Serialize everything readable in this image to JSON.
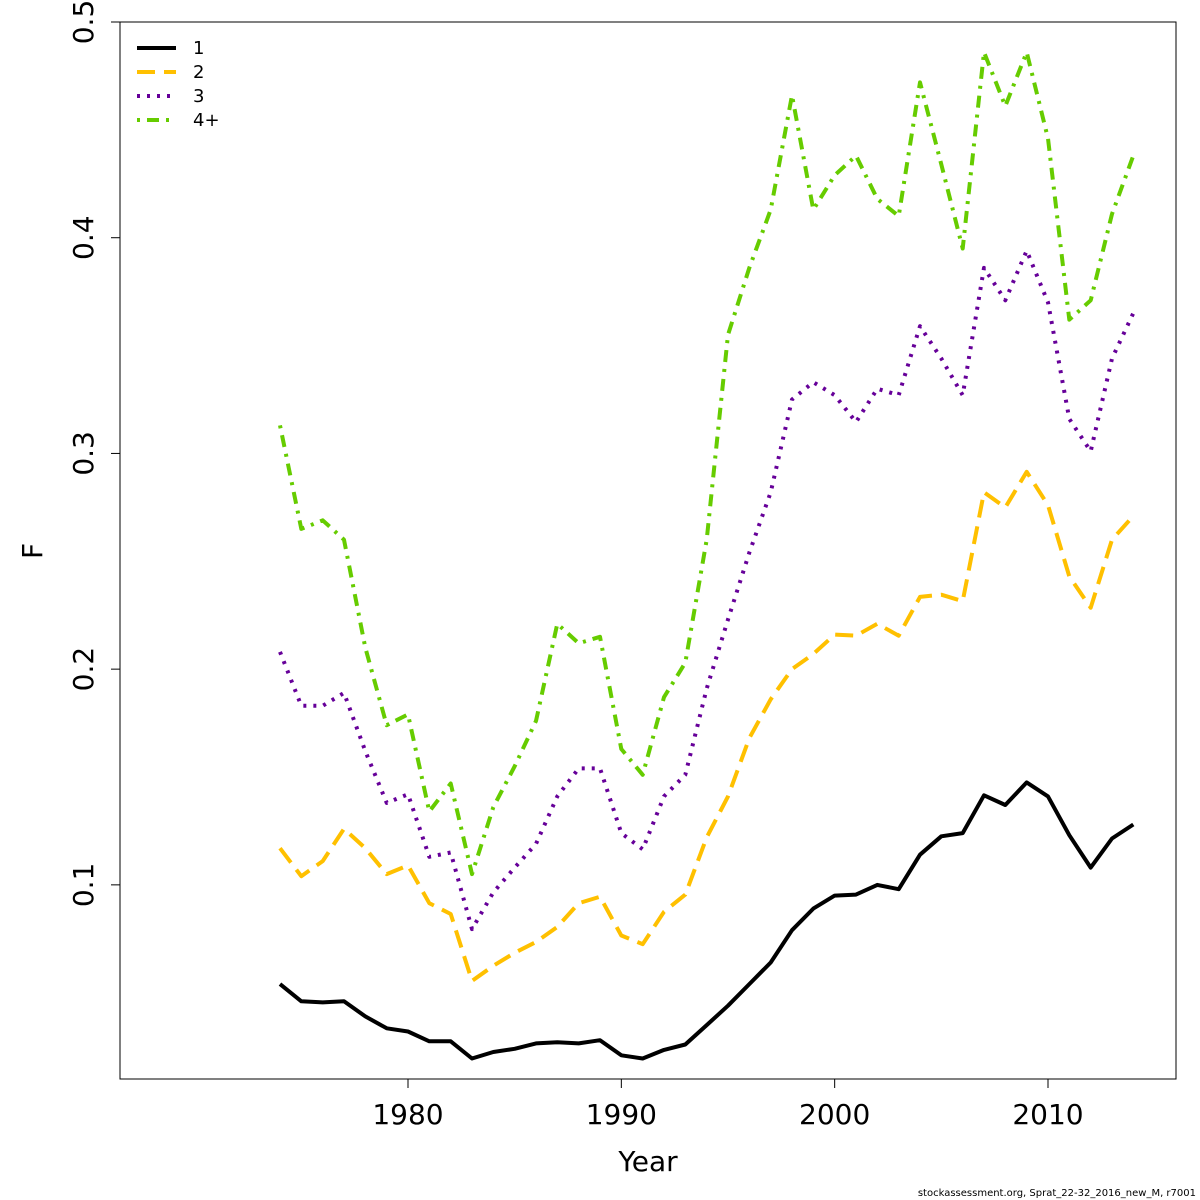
{
  "chart_data": {
    "type": "line",
    "title": "",
    "xlabel": "Year",
    "ylabel": "F",
    "xlim": [
      1966.5,
      2016.0
    ],
    "ylim": [
      0.01,
      0.5
    ],
    "xticks": [
      1980,
      1990,
      2000,
      2010
    ],
    "xtick_labels": [
      "1980",
      "1990",
      "2000",
      "2010"
    ],
    "yticks": [
      0.1,
      0.2,
      0.3,
      0.4,
      0.5
    ],
    "ytick_labels": [
      "0.1",
      "0.2",
      "0.3",
      "0.4",
      "0.5"
    ],
    "grid": false,
    "legend_position": "top-left",
    "x": [
      1974,
      1975,
      1976,
      1977,
      1978,
      1979,
      1980,
      1981,
      1982,
      1983,
      1984,
      1985,
      1986,
      1987,
      1988,
      1989,
      1990,
      1991,
      1992,
      1993,
      1994,
      1995,
      1996,
      1997,
      1998,
      1999,
      2000,
      2001,
      2002,
      2003,
      2004,
      2005,
      2006,
      2007,
      2008,
      2009,
      2010,
      2011,
      2012,
      2013,
      2014
    ],
    "series": [
      {
        "name": "1",
        "color": "#000000",
        "dash": "solid",
        "values": [
          0.054,
          0.046,
          0.0455,
          0.046,
          0.039,
          0.0335,
          0.032,
          0.0275,
          0.0275,
          0.0195,
          0.0225,
          0.024,
          0.0265,
          0.027,
          0.0265,
          0.028,
          0.021,
          0.0195,
          0.0235,
          0.026,
          0.035,
          0.044,
          0.054,
          0.064,
          0.079,
          0.089,
          0.095,
          0.0955,
          0.1,
          0.098,
          0.114,
          0.1225,
          0.124,
          0.1415,
          0.137,
          0.1475,
          0.141,
          0.123,
          0.108,
          0.1215,
          0.128
        ]
      },
      {
        "name": "2",
        "color": "#FFC000",
        "dash": "dashed",
        "values": [
          0.117,
          0.104,
          0.111,
          0.126,
          0.117,
          0.105,
          0.109,
          0.0915,
          0.0865,
          0.0555,
          0.0625,
          0.0685,
          0.0735,
          0.0805,
          0.0915,
          0.0945,
          0.0765,
          0.0725,
          0.0875,
          0.0955,
          0.122,
          0.141,
          0.168,
          0.186,
          0.2,
          0.207,
          0.216,
          0.2155,
          0.221,
          0.2155,
          0.2335,
          0.2345,
          0.2315,
          0.282,
          0.275,
          0.2915,
          0.276,
          0.243,
          0.2285,
          0.26,
          0.271
        ]
      },
      {
        "name": "3",
        "color": "#660099",
        "dash": "dotted",
        "values": [
          0.208,
          0.183,
          0.183,
          0.189,
          0.162,
          0.138,
          0.142,
          0.113,
          0.115,
          0.0795,
          0.0965,
          0.108,
          0.119,
          0.141,
          0.154,
          0.154,
          0.124,
          0.1165,
          0.141,
          0.151,
          0.191,
          0.223,
          0.254,
          0.282,
          0.325,
          0.333,
          0.327,
          0.3145,
          0.33,
          0.327,
          0.359,
          0.344,
          0.327,
          0.386,
          0.371,
          0.394,
          0.37,
          0.316,
          0.301,
          0.344,
          0.365
        ]
      },
      {
        "name": "4+",
        "color": "#66CC00",
        "dash": "dotdash",
        "values": [
          0.313,
          0.265,
          0.269,
          0.26,
          0.21,
          0.174,
          0.179,
          0.134,
          0.147,
          0.105,
          0.136,
          0.155,
          0.176,
          0.221,
          0.212,
          0.215,
          0.163,
          0.151,
          0.187,
          0.203,
          0.26,
          0.355,
          0.386,
          0.413,
          0.466,
          0.413,
          0.429,
          0.438,
          0.418,
          0.41,
          0.472,
          0.434,
          0.395,
          0.486,
          0.461,
          0.486,
          0.446,
          0.362,
          0.371,
          0.411,
          0.438
        ]
      }
    ]
  },
  "footer_text": "stockassessment.org, Sprat_22-32_2016_new_M, r7001"
}
